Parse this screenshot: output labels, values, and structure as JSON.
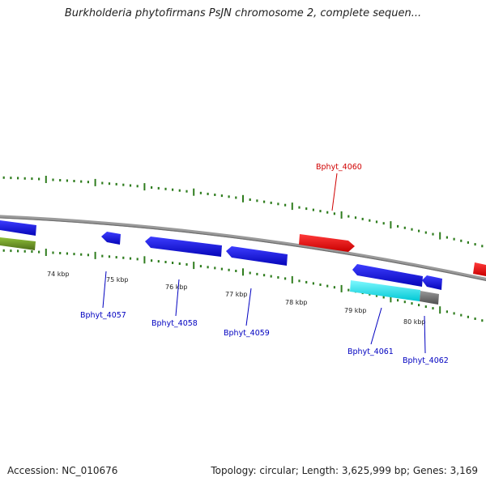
{
  "title": "Burkholderia phytofirmans PsJN chromosome 2, complete sequen...",
  "footer": {
    "accession": "Accession: NC_010676",
    "summary": "Topology: circular; Length: 3,625,999 bp; Genes: 3,169"
  },
  "colors": {
    "backbone": "#8c8c8c",
    "tick": "#2f7d1e",
    "gene_blue": "#0a0adc",
    "gene_red": "#e60000",
    "gene_cyan": "#00e8ee",
    "gene_gray": "#6e6e6e",
    "gene_olive": "#6b8e23",
    "label_blue": "#0000c0",
    "label_red": "#d00000"
  },
  "scale_labels": [
    "74 kbp",
    "75 kbp",
    "76 kbp",
    "77 kbp",
    "78 kbp",
    "79 kbp",
    "80 kbp"
  ],
  "gene_labels": [
    {
      "text": "Bphyt_4057",
      "color": "label_blue"
    },
    {
      "text": "Bphyt_4058",
      "color": "label_blue"
    },
    {
      "text": "Bphyt_4059",
      "color": "label_blue"
    },
    {
      "text": "Bphyt_4060",
      "color": "label_red"
    },
    {
      "text": "Bphyt_4061",
      "color": "label_blue"
    },
    {
      "text": "Bphyt_4062",
      "color": "label_blue"
    }
  ]
}
